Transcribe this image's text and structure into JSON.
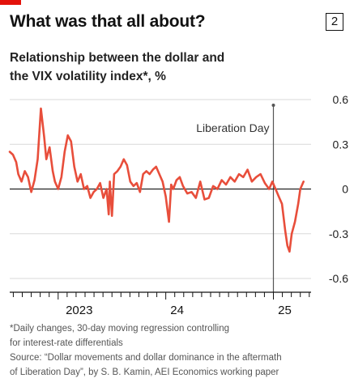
{
  "header": {
    "title": "What was that all about?",
    "chart_number": "2",
    "subtitle_line1": "Relationship between the dollar and",
    "subtitle_line2": "the VIX volatility index*, %"
  },
  "footnote": {
    "line1": "*Daily changes, 30-day moving regression controlling",
    "line2": "for interest-rate differentials",
    "line3": "Source: “Dollar movements and dollar dominance in the aftermath",
    "line4": "of Liberation Day”, by S. B. Kamin, AEI Economics working paper"
  },
  "colors": {
    "line": "#e84e3b",
    "brand": "#e3120b",
    "grid": "#d9d9d9",
    "zero": "#222222",
    "annotation": "#555555"
  },
  "chart_data": {
    "type": "line",
    "title": "What was that all about?",
    "ylabel": "%",
    "ylim": [
      -0.6,
      0.6
    ],
    "yticks": [
      0.6,
      0.3,
      0,
      -0.3,
      -0.6
    ],
    "ytick_labels": [
      "0.6",
      "0.3",
      "0",
      "-0.3",
      "-0.6"
    ],
    "xlim": [
      2022.55,
      2025.35
    ],
    "xtick_labels": [
      {
        "label": "2023",
        "x": 2023.0
      },
      {
        "label": "24",
        "x": 2024.0
      },
      {
        "label": "25",
        "x": 2025.0
      }
    ],
    "annotation": {
      "label": "Liberation Day",
      "x": 2025.0
    },
    "series": [
      {
        "x": [
          2022.55,
          2022.58,
          2022.61,
          2022.63,
          2022.66,
          2022.69,
          2022.72,
          2022.75,
          2022.78,
          2022.81,
          2022.84,
          2022.87,
          2022.89,
          2022.92,
          2022.95,
          2022.97,
          2023.0,
          2023.03,
          2023.06,
          2023.09,
          2023.12,
          2023.15,
          2023.18,
          2023.21,
          2023.24,
          2023.27,
          2023.3,
          2023.33,
          2023.36,
          2023.39,
          2023.42,
          2023.45,
          2023.47,
          2023.48,
          2023.5,
          2023.52,
          2023.55,
          2023.58,
          2023.61,
          2023.64,
          2023.67,
          2023.7,
          2023.73,
          2023.76,
          2023.79,
          2023.82,
          2023.85,
          2023.88,
          2023.91,
          2023.94,
          2023.97,
          2024.0,
          2024.03,
          2024.05,
          2024.07,
          2024.1,
          2024.13,
          2024.16,
          2024.2,
          2024.24,
          2024.28,
          2024.32,
          2024.36,
          2024.4,
          2024.44,
          2024.48,
          2024.52,
          2024.56,
          2024.6,
          2024.64,
          2024.68,
          2024.72,
          2024.76,
          2024.8,
          2024.84,
          2024.88,
          2024.92,
          2024.96,
          2024.99,
          2025.02,
          2025.05,
          2025.08,
          2025.11,
          2025.13,
          2025.15,
          2025.17,
          2025.2,
          2025.23,
          2025.25,
          2025.28
        ],
        "y": [
          0.25,
          0.23,
          0.18,
          0.1,
          0.05,
          0.12,
          0.08,
          -0.02,
          0.06,
          0.2,
          0.54,
          0.35,
          0.2,
          0.28,
          0.12,
          0.05,
          0.0,
          0.08,
          0.25,
          0.36,
          0.32,
          0.15,
          0.05,
          0.1,
          0.0,
          0.02,
          -0.06,
          -0.02,
          0.0,
          0.04,
          -0.06,
          0.0,
          -0.17,
          0.05,
          -0.18,
          0.1,
          0.12,
          0.15,
          0.2,
          0.16,
          0.05,
          0.02,
          0.04,
          -0.02,
          0.1,
          0.12,
          0.1,
          0.13,
          0.15,
          0.1,
          0.05,
          -0.05,
          -0.22,
          0.03,
          0.0,
          0.06,
          0.08,
          0.02,
          -0.03,
          -0.02,
          -0.06,
          0.05,
          -0.07,
          -0.06,
          0.02,
          0.0,
          0.06,
          0.03,
          0.08,
          0.05,
          0.1,
          0.08,
          0.13,
          0.05,
          0.08,
          0.1,
          0.04,
          0.0,
          0.05,
          0.0,
          -0.05,
          -0.1,
          -0.28,
          -0.38,
          -0.42,
          -0.3,
          -0.22,
          -0.1,
          0.0,
          0.05
        ]
      }
    ]
  }
}
